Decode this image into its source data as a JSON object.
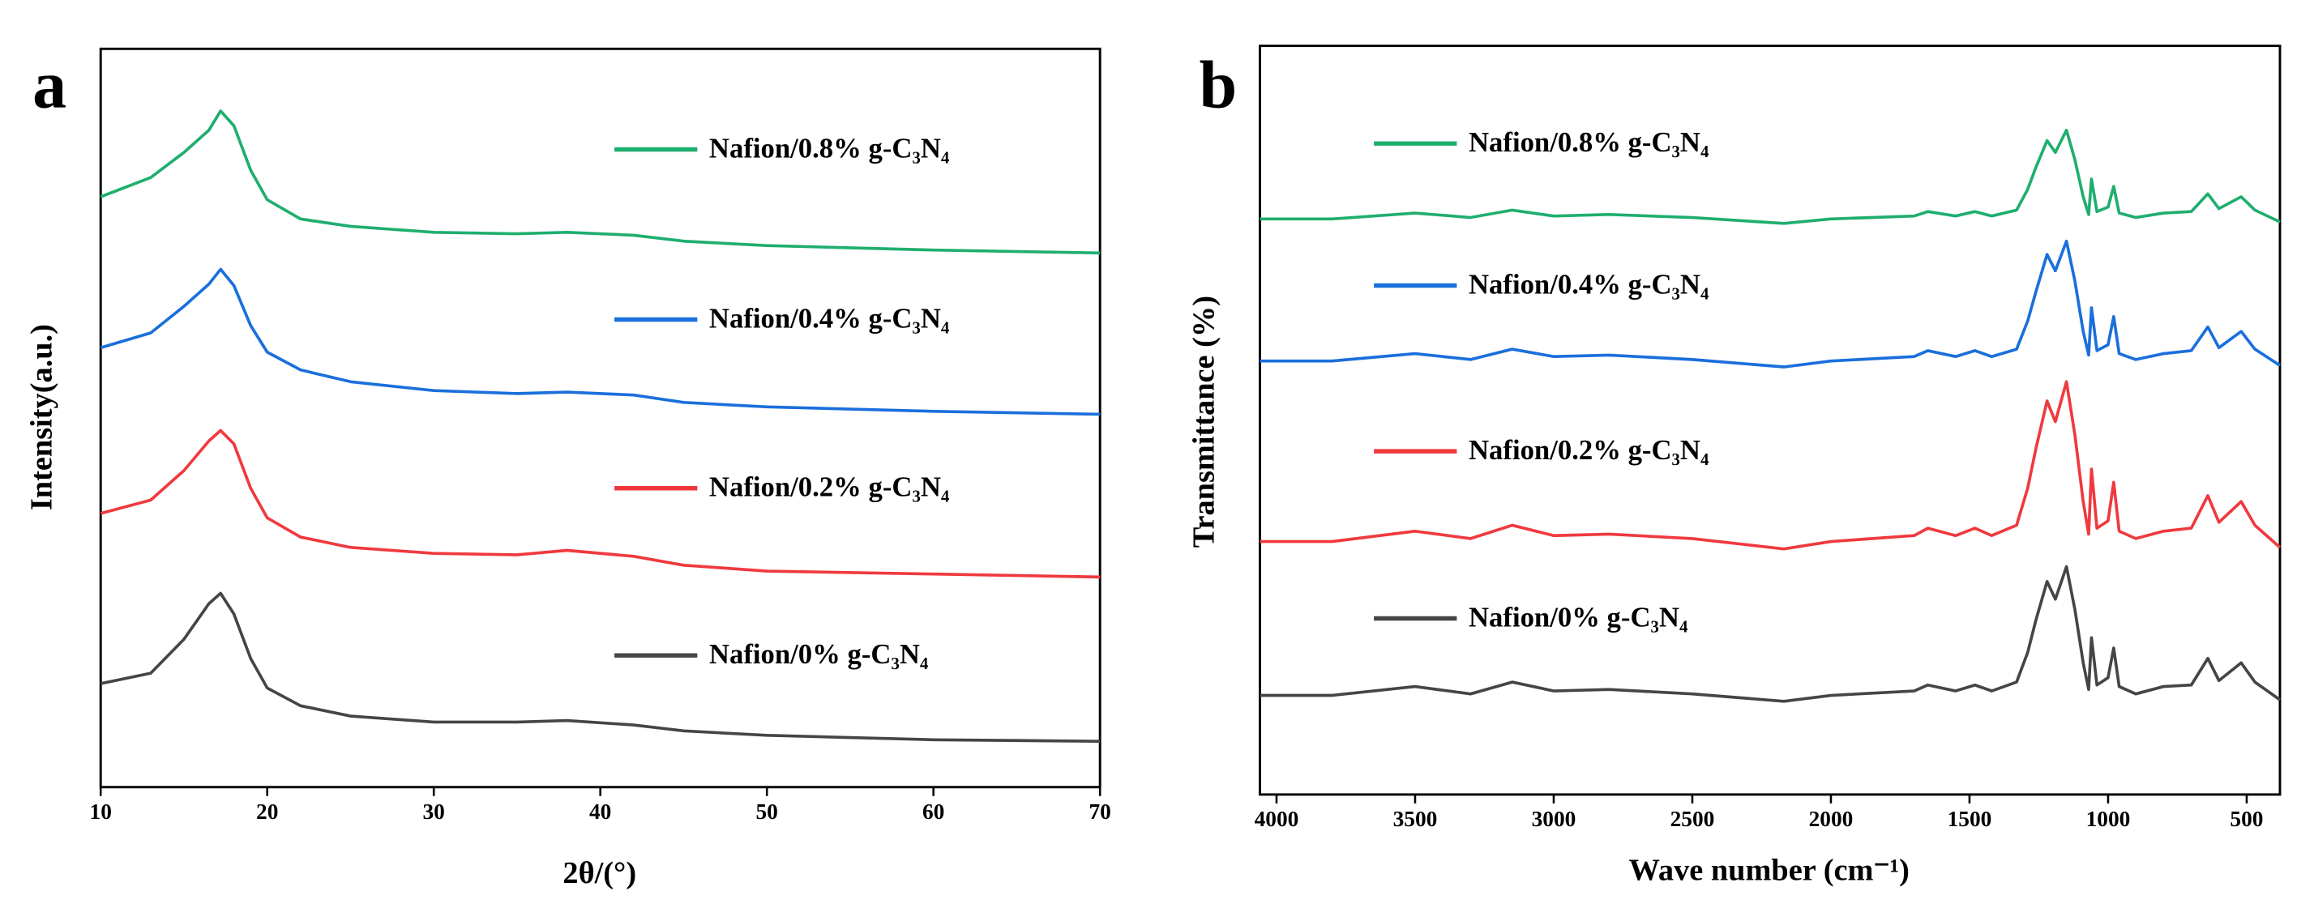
{
  "chart_data": [
    {
      "type": "line",
      "panel_label": "a",
      "x_label": "2θ/(°)",
      "y_label": "Intensity(a.u.)",
      "xlim": [
        10,
        70
      ],
      "xticks": [
        10,
        20,
        30,
        40,
        50,
        60,
        70
      ],
      "ylim": [
        0,
        499
      ],
      "x": [
        10,
        13,
        15,
        16.5,
        17.2,
        18,
        19,
        20,
        22,
        25,
        30,
        35,
        38,
        42,
        45,
        50,
        60,
        70
      ],
      "series": [
        {
          "name": "Nafion/0.8% g-C₃N₄",
          "color": "#1fae6e",
          "values": [
            399,
            412,
            429,
            444,
            457,
            447,
            417,
            397,
            384,
            379,
            375,
            374,
            375,
            373,
            369,
            366,
            363,
            361
          ]
        },
        {
          "name": "Nafion/0.4% g-C₃N₄",
          "color": "#1a6fdc",
          "values": [
            297,
            307,
            325,
            340,
            350,
            339,
            312,
            294,
            282,
            274,
            268,
            266,
            267,
            265,
            260,
            257,
            254,
            252
          ]
        },
        {
          "name": "Nafion/0.2% g-C₃N₄",
          "color": "#f0393e",
          "values": [
            185,
            194,
            214,
            234,
            241,
            232,
            202,
            182,
            169,
            162,
            158,
            157,
            160,
            156,
            150,
            146,
            144,
            142
          ]
        },
        {
          "name": "Nafion/0% g-C₃N₄",
          "color": "#454545",
          "values": [
            70,
            77,
            100,
            124,
            131,
            117,
            87,
            67,
            55,
            48,
            44,
            44,
            45,
            42,
            38,
            35,
            32,
            31
          ]
        }
      ]
    },
    {
      "type": "line",
      "panel_label": "b",
      "x_label": "Wave number (cm⁻¹)",
      "y_label": "Transmittance (%)",
      "xlim": [
        4060,
        380
      ],
      "xticks": [
        4000,
        3500,
        3000,
        2500,
        2000,
        1500,
        1000,
        500
      ],
      "ylim": [
        0,
        506
      ],
      "x": [
        4060,
        3800,
        3500,
        3300,
        3150,
        3000,
        2800,
        2500,
        2170,
        2000,
        1700,
        1650,
        1550,
        1480,
        1420,
        1330,
        1290,
        1260,
        1220,
        1190,
        1150,
        1120,
        1090,
        1070,
        1060,
        1040,
        1000,
        980,
        960,
        900,
        800,
        700,
        640,
        600,
        520,
        470,
        380
      ],
      "series": [
        {
          "name": "Nafion/0.8% g-C₃N₄",
          "color": "#1fae6e",
          "values": [
            389,
            389,
            393,
            390,
            395,
            391,
            392,
            390,
            386,
            389,
            391,
            394,
            391,
            394,
            391,
            395,
            409,
            424,
            442,
            434,
            449,
            429,
            404,
            392,
            416,
            394,
            397,
            411,
            393,
            390,
            393,
            394,
            406,
            396,
            404,
            395,
            387
          ]
        },
        {
          "name": "Nafion/0.4% g-C₃N₄",
          "color": "#1a6fdc",
          "values": [
            293,
            293,
            298,
            294,
            301,
            296,
            297,
            294,
            289,
            293,
            296,
            300,
            296,
            300,
            296,
            301,
            320,
            340,
            365,
            354,
            374,
            347,
            313,
            297,
            329,
            300,
            304,
            323,
            298,
            294,
            298,
            300,
            316,
            302,
            313,
            301,
            290
          ]
        },
        {
          "name": "Nafion/0.2% g-C₃N₄",
          "color": "#f0393e",
          "values": [
            171,
            171,
            178,
            173,
            182,
            175,
            176,
            173,
            166,
            171,
            175,
            180,
            175,
            180,
            175,
            182,
            207,
            234,
            266,
            252,
            279,
            243,
            198,
            176,
            220,
            180,
            185,
            211,
            178,
            173,
            178,
            180,
            202,
            184,
            198,
            182,
            167
          ]
        },
        {
          "name": "Nafion/0% g-C₃N₄",
          "color": "#454545",
          "values": [
            67,
            67,
            73,
            68,
            76,
            70,
            71,
            68,
            63,
            67,
            70,
            74,
            70,
            74,
            70,
            76,
            96,
            118,
            144,
            132,
            154,
            125,
            89,
            71,
            106,
            74,
            79,
            99,
            73,
            68,
            73,
            74,
            92,
            77,
            89,
            76,
            64
          ]
        }
      ]
    }
  ]
}
